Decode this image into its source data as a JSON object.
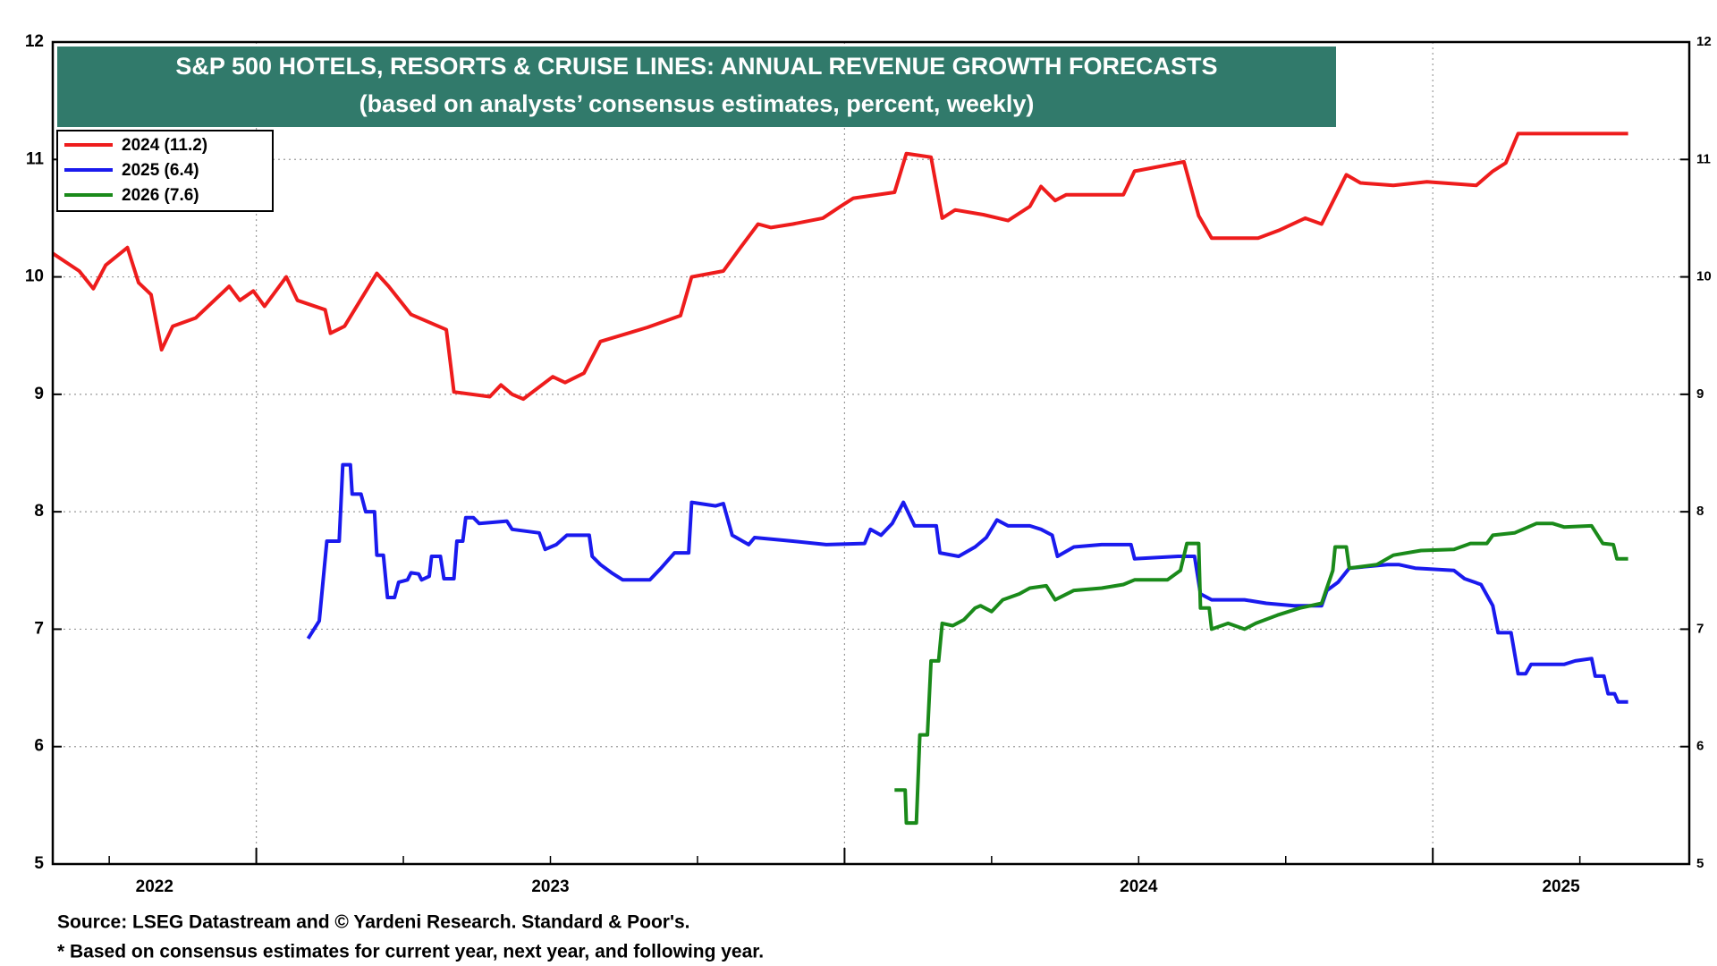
{
  "chart_data": {
    "type": "line",
    "title": "S&P 500 HOTELS, RESORTS & CRUISE LINES: ANNUAL REVENUE GROWTH FORECASTS",
    "subtitle": "(based on analysts’ consensus estimates, percent, weekly)",
    "source": "Source: LSEG Datastream and © Yardeni Research. Standard & Poor's.",
    "note": "* Based on consensus estimates for current year, next year, and following year.",
    "legend": "upper left",
    "grid": true,
    "xlim": [
      2022.654,
      2025.436
    ],
    "xgrid": [
      2023,
      2024,
      2025
    ],
    "xtick_labels": [
      {
        "value": 2022.827,
        "label": "2022"
      },
      {
        "value": 2023.5,
        "label": "2023"
      },
      {
        "value": 2024.5,
        "label": "2024"
      },
      {
        "value": 2025.218,
        "label": "2025"
      }
    ],
    "ylim": [
      5,
      12
    ],
    "yticks": [
      5,
      6,
      7,
      8,
      9,
      10,
      11,
      12
    ],
    "y2lim": [
      5,
      12
    ],
    "y2ticks": [
      5,
      6,
      7,
      8,
      9,
      10,
      11,
      12
    ],
    "series": [
      {
        "name": "2024 (11.2)",
        "color": "#ee1c1c",
        "x": [
          2022.654,
          2022.699,
          2022.723,
          2022.744,
          2022.781,
          2022.8,
          2022.821,
          2022.839,
          2022.858,
          2022.897,
          2022.954,
          2022.972,
          2022.995,
          2023.014,
          2023.051,
          2023.07,
          2023.117,
          2023.126,
          2023.15,
          2023.167,
          2023.205,
          2023.225,
          2023.263,
          2023.323,
          2023.336,
          2023.397,
          2023.416,
          2023.435,
          2023.454,
          2023.504,
          2023.525,
          2023.557,
          2023.585,
          2023.632,
          2023.665,
          2023.721,
          2023.74,
          2023.794,
          2023.823,
          2023.853,
          2023.875,
          2023.912,
          2023.963,
          2023.993,
          2024.015,
          2024.085,
          2024.105,
          2024.147,
          2024.166,
          2024.188,
          2024.236,
          2024.278,
          2024.315,
          2024.334,
          2024.358,
          2024.377,
          2024.474,
          2024.493,
          2024.577,
          2024.602,
          2024.624,
          2024.703,
          2024.74,
          2024.783,
          2024.811,
          2024.836,
          2024.853,
          2024.877,
          2024.933,
          2024.99,
          2025.074,
          2025.102,
          2025.124,
          2025.145,
          2025.332
        ],
        "values": [
          10.2,
          10.05,
          9.9,
          10.1,
          10.25,
          9.95,
          9.85,
          9.38,
          9.58,
          9.65,
          9.92,
          9.8,
          9.88,
          9.75,
          10.0,
          9.8,
          9.72,
          9.52,
          9.58,
          9.72,
          10.03,
          9.92,
          9.68,
          9.55,
          9.02,
          8.98,
          9.08,
          9.0,
          8.96,
          9.15,
          9.1,
          9.18,
          9.45,
          9.52,
          9.57,
          9.67,
          10.0,
          10.05,
          10.25,
          10.45,
          10.42,
          10.45,
          10.5,
          10.6,
          10.67,
          10.72,
          11.05,
          11.02,
          10.5,
          10.57,
          10.53,
          10.48,
          10.6,
          10.77,
          10.65,
          10.7,
          10.7,
          10.9,
          10.98,
          10.52,
          10.33,
          10.33,
          10.4,
          10.5,
          10.45,
          10.7,
          10.87,
          10.8,
          10.78,
          10.81,
          10.78,
          10.9,
          10.97,
          11.22,
          11.22
        ]
      },
      {
        "name": "2025 (6.4)",
        "color": "#1a1aee",
        "x": [
          2023.088,
          2023.107,
          2023.12,
          2023.141,
          2023.147,
          2023.16,
          2023.163,
          2023.178,
          2023.186,
          2023.201,
          2023.205,
          2023.216,
          2023.223,
          2023.235,
          2023.242,
          2023.257,
          2023.263,
          2023.276,
          2023.281,
          2023.294,
          2023.298,
          2023.313,
          2023.319,
          2023.336,
          2023.341,
          2023.351,
          2023.356,
          2023.369,
          2023.379,
          2023.426,
          2023.435,
          2023.481,
          2023.491,
          2023.51,
          2023.528,
          2023.566,
          2023.571,
          2023.585,
          2023.604,
          2023.623,
          2023.669,
          2023.688,
          2023.711,
          2023.735,
          2023.74,
          2023.781,
          2023.794,
          2023.809,
          2023.837,
          2023.847,
          2023.912,
          2023.969,
          2024.034,
          2024.044,
          2024.062,
          2024.081,
          2024.1,
          2024.119,
          2024.156,
          2024.162,
          2024.194,
          2024.222,
          2024.241,
          2024.259,
          2024.278,
          2024.315,
          2024.334,
          2024.353,
          2024.362,
          2024.39,
          2024.437,
          2024.487,
          2024.493,
          2024.567,
          2024.595,
          2024.605,
          2024.624,
          2024.68,
          2024.717,
          2024.764,
          2024.811,
          2024.82,
          2024.839,
          2024.858,
          2024.923,
          2024.942,
          2024.97,
          2025.036,
          2025.054,
          2025.082,
          2025.102,
          2025.111,
          2025.133,
          2025.145,
          2025.158,
          2025.167,
          2025.223,
          2025.242,
          2025.27,
          2025.276,
          2025.291,
          2025.298,
          2025.309,
          2025.315,
          2025.332
        ],
        "values": [
          6.92,
          7.07,
          7.75,
          7.75,
          8.4,
          8.4,
          8.15,
          8.15,
          8.0,
          8.0,
          7.63,
          7.63,
          7.27,
          7.27,
          7.4,
          7.42,
          7.48,
          7.47,
          7.42,
          7.45,
          7.62,
          7.62,
          7.43,
          7.43,
          7.75,
          7.75,
          7.95,
          7.95,
          7.9,
          7.92,
          7.85,
          7.82,
          7.68,
          7.72,
          7.8,
          7.8,
          7.62,
          7.55,
          7.48,
          7.42,
          7.42,
          7.52,
          7.65,
          7.65,
          8.08,
          8.05,
          8.07,
          7.8,
          7.72,
          7.78,
          7.75,
          7.72,
          7.73,
          7.85,
          7.8,
          7.9,
          8.08,
          7.88,
          7.88,
          7.65,
          7.62,
          7.7,
          7.78,
          7.93,
          7.88,
          7.88,
          7.85,
          7.8,
          7.62,
          7.7,
          7.72,
          7.72,
          7.6,
          7.62,
          7.62,
          7.3,
          7.25,
          7.25,
          7.22,
          7.2,
          7.2,
          7.33,
          7.4,
          7.52,
          7.55,
          7.55,
          7.52,
          7.5,
          7.43,
          7.38,
          7.2,
          6.97,
          6.97,
          6.62,
          6.62,
          6.7,
          6.7,
          6.73,
          6.75,
          6.6,
          6.6,
          6.45,
          6.45,
          6.38,
          6.38
        ]
      },
      {
        "name": "2026 (7.6)",
        "color": "#1a8a1a",
        "x": [
          2024.085,
          2024.103,
          2024.105,
          2024.122,
          2024.128,
          2024.141,
          2024.147,
          2024.16,
          2024.166,
          2024.184,
          2024.203,
          2024.222,
          2024.231,
          2024.25,
          2024.269,
          2024.297,
          2024.315,
          2024.343,
          2024.358,
          2024.39,
          2024.437,
          2024.474,
          2024.493,
          2024.549,
          2024.571,
          2024.582,
          2024.602,
          2024.605,
          2024.62,
          2024.624,
          2024.652,
          2024.68,
          2024.699,
          2024.736,
          2024.774,
          2024.811,
          2024.83,
          2024.834,
          2024.853,
          2024.858,
          2024.905,
          2024.933,
          2024.98,
          2025.036,
          2025.064,
          2025.092,
          2025.102,
          2025.139,
          2025.176,
          2025.204,
          2025.223,
          2025.27,
          2025.289,
          2025.307,
          2025.313,
          2025.332
        ],
        "values": [
          5.63,
          5.63,
          5.35,
          5.35,
          6.1,
          6.1,
          6.73,
          6.73,
          7.05,
          7.03,
          7.08,
          7.18,
          7.2,
          7.15,
          7.25,
          7.3,
          7.35,
          7.37,
          7.25,
          7.33,
          7.35,
          7.38,
          7.42,
          7.42,
          7.5,
          7.73,
          7.73,
          7.18,
          7.18,
          7.0,
          7.05,
          7.0,
          7.05,
          7.12,
          7.18,
          7.22,
          7.5,
          7.7,
          7.7,
          7.52,
          7.55,
          7.63,
          7.67,
          7.68,
          7.73,
          7.73,
          7.8,
          7.82,
          7.9,
          7.9,
          7.87,
          7.88,
          7.73,
          7.72,
          7.6,
          7.6
        ]
      }
    ]
  }
}
